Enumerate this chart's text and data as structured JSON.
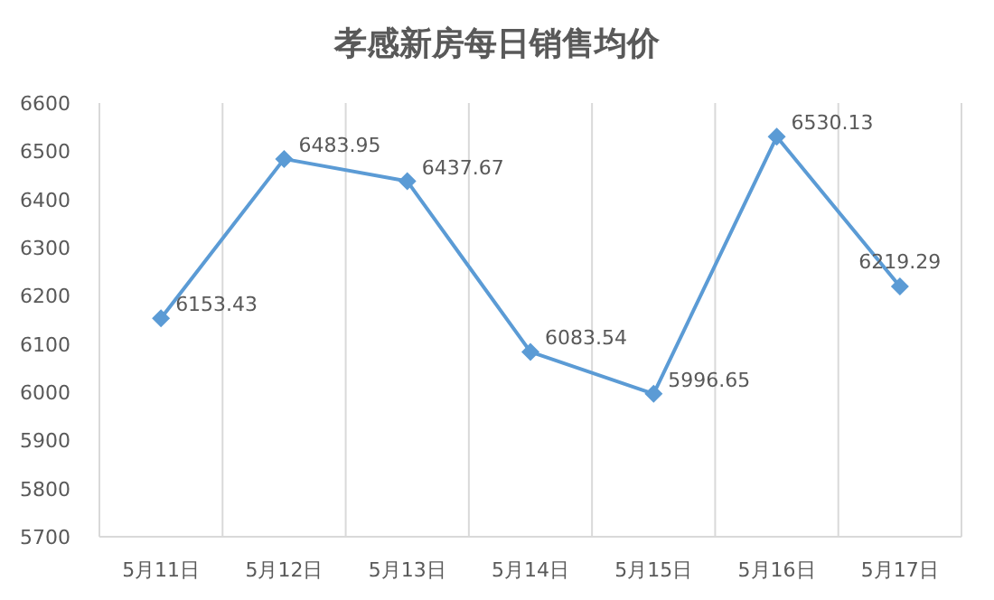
{
  "chart_data": {
    "type": "line",
    "title": "孝感新房每日销售均价",
    "categories": [
      "5月11日",
      "5月12日",
      "5月13日",
      "5月14日",
      "5月15日",
      "5月16日",
      "5月17日"
    ],
    "series": [
      {
        "color": "#5b9bd5",
        "values": [
          6153.43,
          6483.95,
          6437.67,
          6083.54,
          5996.65,
          6530.13,
          6219.29
        ]
      }
    ],
    "ylim": [
      5700,
      6600
    ],
    "yticks": [
      5700,
      5800,
      5900,
      6000,
      6100,
      6200,
      6300,
      6400,
      6500,
      6600
    ],
    "grid": "x",
    "marker": "diamond",
    "data_labels": true
  }
}
